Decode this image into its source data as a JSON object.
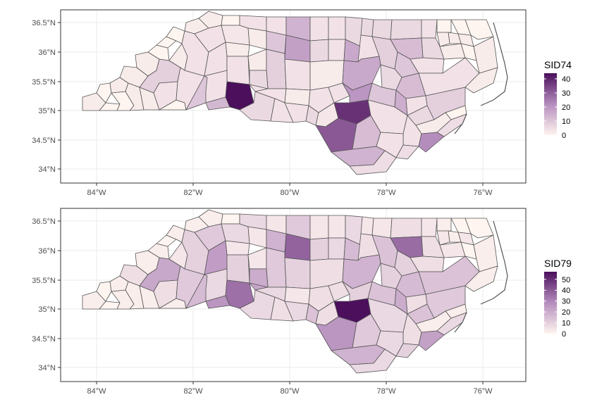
{
  "panels": [
    {
      "legend_title": "SID74",
      "legend_ticks": [
        "0",
        "10",
        "20",
        "30",
        "40"
      ],
      "legend_max": 44,
      "x_ticks": [
        "84°W",
        "82°W",
        "80°W",
        "78°W",
        "76°W"
      ],
      "y_ticks": [
        "36.5°N",
        "36°N",
        "35.5°N",
        "35°N",
        "34.5°N",
        "34°N"
      ],
      "county_values": {
        "mecklenburg": 44,
        "cumberland": 38,
        "wake": 16,
        "durham": 16,
        "guilford": 18,
        "forsyth": 10,
        "robeson": 31,
        "onslow": 22,
        "harnett": 20,
        "wayne": 15,
        "pitt": 12,
        "gaston": 13,
        "bladen": 12,
        "rockingham": 14,
        "halifax": 12,
        "davidson": 8,
        "columbus": 14,
        "buncombe": 8,
        "sampson": 4,
        "nash": 8,
        "johnston": 10,
        "moore": 4,
        "edgecombe": 10,
        "lenoir": 6,
        "craven": 8,
        "wilkes": 3,
        "rowan": 6,
        "union": 6,
        "iredell": 4,
        "catawba": 4,
        "alamance": 6,
        "caswell": 4,
        "person": 4,
        "granville": 6,
        "vance": 6,
        "warren": 6,
        "northampton": 6,
        "hertford": 4,
        "bertie": 6,
        "martin": 4,
        "beaufort": 4,
        "hyde": 2,
        "dare": 2,
        "currituck": 0,
        "camden": 0,
        "pasquotank": 2,
        "perquimans": 2,
        "chowan": 2,
        "gates": 0,
        "washington": 2,
        "tyrrell": 0,
        "pamlico": 0,
        "carteret": 5,
        "jones": 2,
        "duplin": 4,
        "pender": 4,
        "new_hanover": 5,
        "brunswick": 5,
        "scotland": 6,
        "hoke": 3,
        "richmond": 4,
        "anson": 4,
        "montgomery": 2,
        "stanly": 4,
        "cabarrus": 4,
        "randolph": 4,
        "chatham": 2,
        "lee": 4,
        "orange": 4,
        "franklin": 4,
        "wilson": 6,
        "greene": 4,
        "surry": 4,
        "stokes": 4,
        "yadkin": 2,
        "davie": 2,
        "alexander": 2,
        "caldwell": 4,
        "burke": 4,
        "mcdowell": 2,
        "rutherford": 4,
        "cleveland": 10,
        "lincoln": 4,
        "polk": 0,
        "henderson": 4,
        "transylvania": 2,
        "jackson": 2,
        "macon": 0,
        "clay": 0,
        "cherokee": 2,
        "graham": 0,
        "swain": 2,
        "haywood": 2,
        "madison": 2,
        "yancey": 0,
        "mitchell": 0,
        "avery": 0,
        "watauga": 2,
        "ashe": 2,
        "alleghany": 0
      }
    },
    {
      "legend_title": "SID79",
      "legend_ticks": [
        "0",
        "10",
        "20",
        "30",
        "40",
        "50"
      ],
      "legend_max": 57,
      "x_ticks": [
        "84°W",
        "82°W",
        "80°W",
        "78°W",
        "76°W"
      ],
      "y_ticks": [
        "36.5°N",
        "36°N",
        "35.5°N",
        "35°N",
        "34.5°N",
        "34°N"
      ],
      "county_values": {
        "mecklenburg": 35,
        "cumberland": 57,
        "wake": 18,
        "durham": 16,
        "guilford": 38,
        "forsyth": 18,
        "robeson": 26,
        "onslow": 23,
        "harnett": 10,
        "wayne": 20,
        "pitt": 16,
        "gaston": 26,
        "bladen": 12,
        "rockingham": 12,
        "halifax": 36,
        "davidson": 12,
        "columbus": 18,
        "buncombe": 21,
        "sampson": 8,
        "nash": 14,
        "johnston": 14,
        "moore": 6,
        "edgecombe": 10,
        "lenoir": 14,
        "craven": 12,
        "wilkes": 8,
        "rowan": 20,
        "union": 8,
        "iredell": 10,
        "catawba": 24,
        "alamance": 10,
        "caswell": 4,
        "person": 4,
        "granville": 8,
        "vance": 4,
        "warren": 4,
        "northampton": 6,
        "hertford": 4,
        "bertie": 6,
        "martin": 6,
        "beaufort": 14,
        "hyde": 2,
        "dare": 2,
        "currituck": 0,
        "camden": 0,
        "pasquotank": 4,
        "perquimans": 2,
        "chowan": 4,
        "gates": 2,
        "washington": 4,
        "tyrrell": 0,
        "pamlico": 2,
        "carteret": 8,
        "jones": 2,
        "duplin": 6,
        "pender": 8,
        "new_hanover": 10,
        "brunswick": 8,
        "scotland": 14,
        "hoke": 6,
        "richmond": 8,
        "anson": 6,
        "montgomery": 4,
        "stanly": 8,
        "cabarrus": 22,
        "randolph": 10,
        "chatham": 6,
        "lee": 6,
        "orange": 8,
        "franklin": 6,
        "wilson": 10,
        "greene": 6,
        "surry": 8,
        "stokes": 4,
        "yadkin": 4,
        "davie": 4,
        "alexander": 4,
        "caldwell": 12,
        "burke": 10,
        "mcdowell": 4,
        "rutherford": 12,
        "cleveland": 16,
        "lincoln": 8,
        "polk": 2,
        "henderson": 6,
        "transylvania": 2,
        "jackson": 2,
        "macon": 2,
        "clay": 0,
        "cherokee": 2,
        "graham": 0,
        "swain": 2,
        "haywood": 6,
        "madison": 2,
        "yancey": 2,
        "mitchell": 0,
        "avery": 2,
        "watauga": 2,
        "ashe": 2,
        "alleghany": 0
      }
    }
  ],
  "colors": {
    "low": "#fff5f0",
    "mid": "#b58dbd",
    "high": "#4b0f5c",
    "border": "#555555",
    "coast": "#555555"
  }
}
